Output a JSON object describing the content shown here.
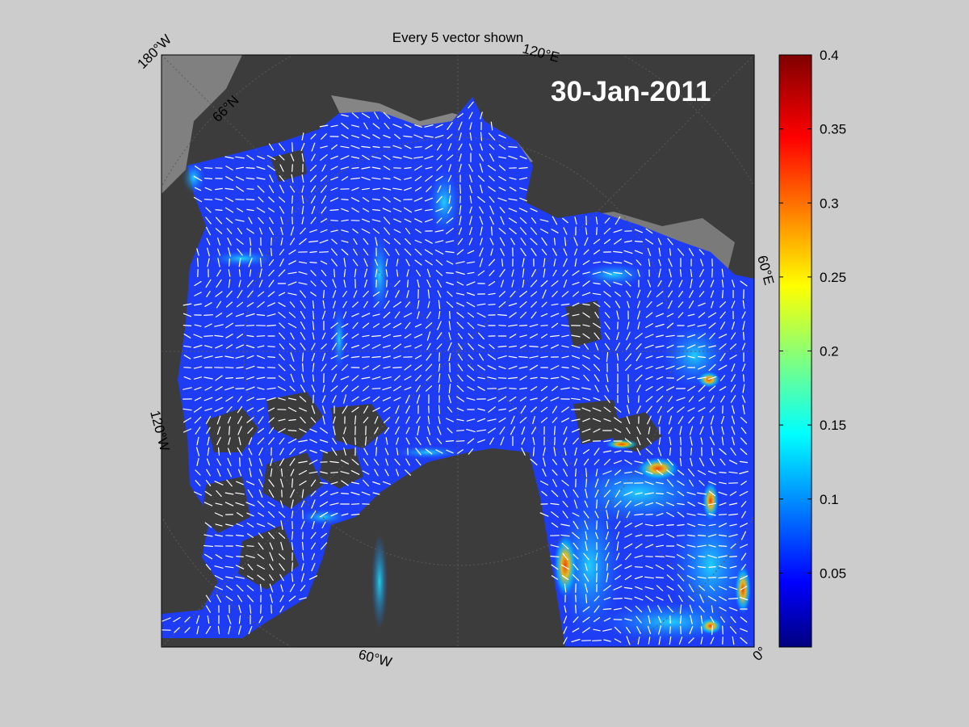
{
  "title": "Every 5 vector shown",
  "date": "30-Jan-2011",
  "longitude_labels": {
    "w180": "180°W",
    "e120": "120°E",
    "e60": "60°E",
    "w120": "120°W",
    "w60": "60°W",
    "zero": "0°"
  },
  "latitude_label": "66°N",
  "colorbar": {
    "min": 0,
    "max": 0.4,
    "colormap": "jet",
    "ticks": [
      "0.05",
      "0.1",
      "0.15",
      "0.2",
      "0.25",
      "0.3",
      "0.35",
      "0.4"
    ]
  },
  "colors": {
    "background": "#cccccc",
    "land": "#3c3c3c",
    "land_edge": "#858585",
    "ice_field": "#1f3cf5",
    "vector": "#ffffff"
  }
}
